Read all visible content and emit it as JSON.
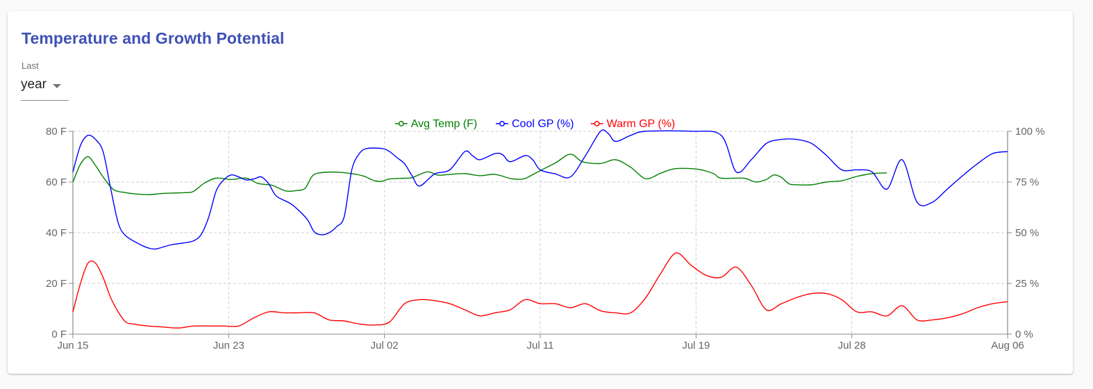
{
  "title": "Temperature and Growth Potential",
  "range": {
    "label": "Last",
    "value": "year"
  },
  "colors": {
    "title": "#3f51b5",
    "avg_temp": "#008000",
    "cool_gp": "#0000ff",
    "warm_gp": "#ff0000"
  },
  "chart_data": {
    "type": "line",
    "grid": true,
    "legend_position": "top-center",
    "x_ticks": [
      "Jun 15",
      "Jun 23",
      "Jul 02",
      "Jul 11",
      "Jul 19",
      "Jul 28",
      "Aug 06"
    ],
    "y_left": {
      "ticks": [
        "0 F",
        "20 F",
        "40 F",
        "60 F",
        "80 F"
      ],
      "range": [
        0,
        80
      ]
    },
    "y_right": {
      "ticks": [
        "0 %",
        "25 %",
        "50 %",
        "75 %",
        "100 %"
      ],
      "range": [
        0,
        100
      ]
    },
    "series": [
      {
        "name": "Avg Temp (F)",
        "axis": "left",
        "color": "#008000",
        "points": [
          [
            0,
            60
          ],
          [
            0.5,
            67
          ],
          [
            1,
            70
          ],
          [
            1.5,
            66.5
          ],
          [
            2,
            62
          ],
          [
            2.7,
            57
          ],
          [
            3.5,
            55.8
          ],
          [
            4,
            55.4
          ],
          [
            5,
            55
          ],
          [
            6,
            55.5
          ],
          [
            7.4,
            55.8
          ],
          [
            8,
            56.3
          ],
          [
            8.7,
            59.5
          ],
          [
            9.5,
            61.5
          ],
          [
            10.5,
            61
          ],
          [
            11.5,
            61.5
          ],
          [
            12.3,
            59.4
          ],
          [
            13.2,
            58.7
          ],
          [
            14.1,
            56.5
          ],
          [
            14.8,
            56.6
          ],
          [
            15.4,
            57.5
          ],
          [
            15.9,
            62.5
          ],
          [
            16.5,
            63.7
          ],
          [
            17.5,
            63.9
          ],
          [
            18.5,
            63.3
          ],
          [
            19.3,
            62.3
          ],
          [
            20,
            60.5
          ],
          [
            20.5,
            60.3
          ],
          [
            21,
            61.2
          ],
          [
            22,
            61.5
          ],
          [
            22.5,
            61.7
          ],
          [
            23.5,
            64
          ],
          [
            24.2,
            62.7
          ],
          [
            25,
            63
          ],
          [
            26,
            63.3
          ],
          [
            27,
            62.5
          ],
          [
            28,
            63
          ],
          [
            29,
            61.4
          ],
          [
            29.5,
            61.1
          ],
          [
            30,
            61.4
          ],
          [
            31,
            64.5
          ],
          [
            32,
            67.5
          ],
          [
            33,
            71
          ],
          [
            33.8,
            68
          ],
          [
            35,
            67.3
          ],
          [
            36,
            68.8
          ],
          [
            37,
            65.8
          ],
          [
            38,
            61.3
          ],
          [
            39,
            63.5
          ],
          [
            40,
            65.3
          ],
          [
            41.5,
            65
          ],
          [
            42.5,
            63.3
          ],
          [
            43,
            61.5
          ],
          [
            44.5,
            61.5
          ],
          [
            45.3,
            60
          ],
          [
            46,
            61
          ],
          [
            46.5,
            62.8
          ],
          [
            47,
            61.8
          ],
          [
            47.5,
            59.3
          ],
          [
            48,
            58.9
          ],
          [
            49,
            58.9
          ],
          [
            50,
            60
          ],
          [
            51,
            60.5
          ],
          [
            52,
            62.2
          ],
          [
            53,
            63.3
          ],
          [
            54,
            63.6
          ]
        ]
      },
      {
        "name": "Cool GP (%)",
        "axis": "right",
        "color": "#0000ff",
        "points": [
          [
            0,
            80
          ],
          [
            0.5,
            93
          ],
          [
            1,
            98
          ],
          [
            1.5,
            96
          ],
          [
            2,
            90
          ],
          [
            2.5,
            72
          ],
          [
            3,
            55
          ],
          [
            3.5,
            48.5
          ],
          [
            4.5,
            44
          ],
          [
            5,
            42.5
          ],
          [
            5.5,
            42
          ],
          [
            6.5,
            44
          ],
          [
            7.4,
            45
          ],
          [
            8,
            46
          ],
          [
            8.5,
            49
          ],
          [
            9,
            57.5
          ],
          [
            9.5,
            70.5
          ],
          [
            10,
            76
          ],
          [
            10.5,
            78.5
          ],
          [
            11,
            77.5
          ],
          [
            11.5,
            76
          ],
          [
            12,
            76.5
          ],
          [
            12.5,
            77.5
          ],
          [
            13,
            74
          ],
          [
            13.5,
            68
          ],
          [
            14.5,
            64
          ],
          [
            15.5,
            57
          ],
          [
            16,
            50.5
          ],
          [
            16.5,
            49
          ],
          [
            17,
            50
          ],
          [
            17.5,
            53
          ],
          [
            18,
            58
          ],
          [
            18.5,
            81
          ],
          [
            19,
            89
          ],
          [
            19.5,
            91.5
          ],
          [
            20.5,
            91.5
          ],
          [
            21,
            90
          ],
          [
            21.5,
            87
          ],
          [
            22,
            84
          ],
          [
            22.5,
            78
          ],
          [
            23,
            73
          ],
          [
            24,
            79
          ],
          [
            25,
            81
          ],
          [
            26,
            90
          ],
          [
            26.5,
            88
          ],
          [
            27,
            86
          ],
          [
            28,
            89
          ],
          [
            28.5,
            88.5
          ],
          [
            29,
            85
          ],
          [
            30,
            88
          ],
          [
            30.5,
            86
          ],
          [
            31,
            81
          ],
          [
            32,
            79
          ],
          [
            33,
            77.5
          ],
          [
            34,
            88
          ],
          [
            35,
            100
          ],
          [
            35.5,
            99
          ],
          [
            36,
            95
          ],
          [
            37,
            98
          ],
          [
            38,
            100
          ],
          [
            41,
            100
          ],
          [
            43,
            98
          ],
          [
            44,
            80
          ],
          [
            45,
            86
          ],
          [
            46,
            94
          ],
          [
            47,
            96
          ],
          [
            48,
            96
          ],
          [
            49,
            94
          ],
          [
            50,
            88
          ],
          [
            51,
            81
          ],
          [
            52,
            81
          ],
          [
            53,
            80
          ],
          [
            54,
            71.5
          ],
          [
            55,
            86
          ],
          [
            56,
            65
          ],
          [
            57,
            65
          ],
          [
            58,
            71.5
          ],
          [
            59,
            78
          ],
          [
            60,
            84
          ],
          [
            61,
            89
          ],
          [
            62,
            90
          ]
        ]
      },
      {
        "name": "Warm GP (%)",
        "axis": "right",
        "color": "#ff0000",
        "points": [
          [
            0,
            11
          ],
          [
            0.5,
            25
          ],
          [
            1,
            35
          ],
          [
            1.5,
            35
          ],
          [
            2,
            28
          ],
          [
            2.5,
            18
          ],
          [
            3,
            11
          ],
          [
            3.5,
            6
          ],
          [
            4,
            5
          ],
          [
            5,
            4
          ],
          [
            6,
            3.5
          ],
          [
            7,
            3
          ],
          [
            8,
            4
          ],
          [
            9,
            4
          ],
          [
            10,
            4
          ],
          [
            11,
            4
          ],
          [
            12,
            8
          ],
          [
            13,
            11
          ],
          [
            14,
            10.5
          ],
          [
            15,
            10.5
          ],
          [
            16,
            10.5
          ],
          [
            17,
            7
          ],
          [
            18,
            6.5
          ],
          [
            19,
            5
          ],
          [
            20,
            4.5
          ],
          [
            21,
            6
          ],
          [
            22,
            15
          ],
          [
            23,
            17
          ],
          [
            24,
            16.5
          ],
          [
            25,
            15
          ],
          [
            26,
            12
          ],
          [
            27,
            9
          ],
          [
            28,
            10.5
          ],
          [
            29,
            12
          ],
          [
            30,
            17
          ],
          [
            31,
            15
          ],
          [
            32,
            15
          ],
          [
            33,
            13
          ],
          [
            34,
            15
          ],
          [
            35,
            11.5
          ],
          [
            36,
            10.5
          ],
          [
            37,
            10.5
          ],
          [
            38,
            18
          ],
          [
            39,
            30
          ],
          [
            40,
            40
          ],
          [
            41,
            34
          ],
          [
            42,
            29
          ],
          [
            43,
            28
          ],
          [
            44,
            33
          ],
          [
            45,
            24
          ],
          [
            46,
            12
          ],
          [
            47,
            15
          ],
          [
            48,
            18
          ],
          [
            49,
            20
          ],
          [
            50,
            20
          ],
          [
            51,
            17
          ],
          [
            52,
            11
          ],
          [
            53,
            11
          ],
          [
            54,
            9
          ],
          [
            55,
            14
          ],
          [
            56,
            7
          ],
          [
            57,
            7
          ],
          [
            58,
            8
          ],
          [
            59,
            10
          ],
          [
            60,
            13
          ],
          [
            61,
            15
          ],
          [
            62,
            16
          ]
        ]
      }
    ]
  }
}
